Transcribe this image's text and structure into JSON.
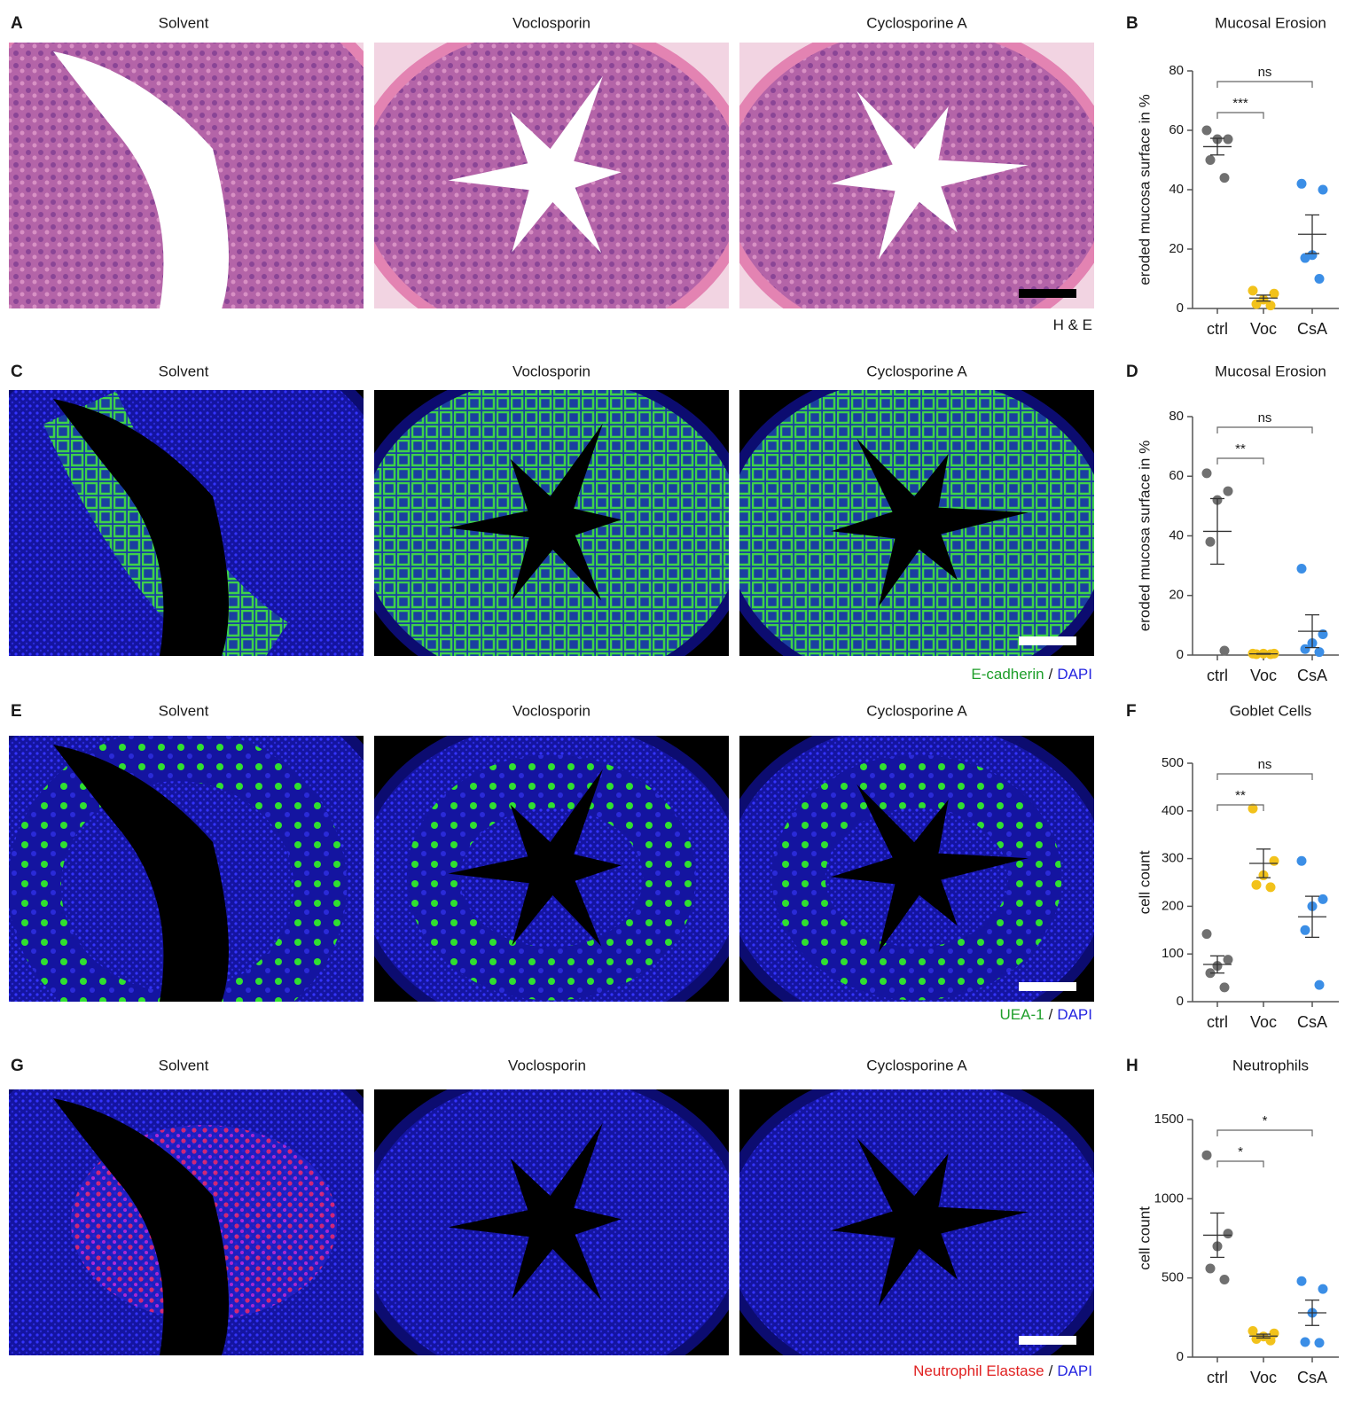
{
  "rows": [
    {
      "letter": "A",
      "titles": [
        "Solvent",
        "Voclosporin",
        "Cyclosporine A"
      ],
      "stain": [
        {
          "text": "H & E",
          "color": "#1a1a1a"
        }
      ]
    },
    {
      "letter": "C",
      "titles": [
        "Solvent",
        "Voclosporin",
        "Cyclosporine A"
      ],
      "stain": [
        {
          "text": "E-cadherin",
          "color": "#1e9e2a"
        },
        {
          "text": "/",
          "color": "#1a1a1a"
        },
        {
          "text": "DAPI",
          "color": "#2424e0"
        }
      ]
    },
    {
      "letter": "E",
      "titles": [
        "Solvent",
        "Voclosporin",
        "Cyclosporine A"
      ],
      "stain": [
        {
          "text": "UEA-1",
          "color": "#1e9e2a"
        },
        {
          "text": "/",
          "color": "#1a1a1a"
        },
        {
          "text": "DAPI",
          "color": "#2424e0"
        }
      ]
    },
    {
      "letter": "G",
      "titles": [
        "Solvent",
        "Voclosporin",
        "Cyclosporine A"
      ],
      "stain": [
        {
          "text": "Neutrophil Elastase",
          "color": "#e02020"
        },
        {
          "text": "/",
          "color": "#1a1a1a"
        },
        {
          "text": "DAPI",
          "color": "#2424e0"
        }
      ]
    }
  ],
  "chart_data": [
    {
      "type": "dot",
      "letter": "B",
      "title": "Mucosal Erosion",
      "ylabel": "eroded mucosa surface in %",
      "categories": [
        "ctrl",
        "Voc",
        "CsA"
      ],
      "colors": [
        "#707070",
        "#f2c21b",
        "#3b8ee6"
      ],
      "points": [
        [
          60,
          57,
          57,
          50,
          44
        ],
        [
          6,
          5,
          3,
          1.5,
          1
        ],
        [
          42,
          40,
          18,
          17,
          10
        ]
      ],
      "means": [
        54.5,
        3.5,
        25
      ],
      "errors": [
        2.8,
        1,
        6.5
      ],
      "ylim": [
        0,
        80
      ],
      "yticks": [
        0,
        20,
        40,
        60,
        80
      ],
      "comparisons": [
        {
          "groups": [
            "ctrl",
            "Voc"
          ],
          "label": "***"
        },
        {
          "groups": [
            "ctrl",
            "CsA"
          ],
          "label": "ns"
        }
      ]
    },
    {
      "type": "dot",
      "letter": "D",
      "title": "Mucosal Erosion",
      "ylabel": "eroded mucosa surface in %",
      "categories": [
        "ctrl",
        "Voc",
        "CsA"
      ],
      "colors": [
        "#707070",
        "#f2c21b",
        "#3b8ee6"
      ],
      "points": [
        [
          61,
          55,
          52,
          38,
          1.5
        ],
        [
          0.5,
          0.5,
          0.5,
          0.3,
          0.3
        ],
        [
          29,
          7,
          4,
          2,
          1
        ]
      ],
      "means": [
        41.5,
        0.4,
        8
      ],
      "errors": [
        11,
        0.1,
        5.5
      ],
      "ylim": [
        0,
        80
      ],
      "yticks": [
        0,
        20,
        40,
        60,
        80
      ],
      "comparisons": [
        {
          "groups": [
            "ctrl",
            "Voc"
          ],
          "label": "**"
        },
        {
          "groups": [
            "ctrl",
            "CsA"
          ],
          "label": "ns"
        }
      ]
    },
    {
      "type": "dot",
      "letter": "F",
      "title": "Goblet Cells",
      "ylabel": "cell count",
      "categories": [
        "ctrl",
        "Voc",
        "CsA"
      ],
      "colors": [
        "#707070",
        "#f2c21b",
        "#3b8ee6"
      ],
      "points": [
        [
          142,
          88,
          75,
          60,
          30
        ],
        [
          405,
          295,
          265,
          245,
          240
        ],
        [
          295,
          215,
          200,
          150,
          35
        ]
      ],
      "means": [
        78,
        290,
        178
      ],
      "errors": [
        18,
        30,
        43
      ],
      "ylim": [
        0,
        500
      ],
      "yticks": [
        0,
        100,
        200,
        300,
        400,
        500
      ],
      "comparisons": [
        {
          "groups": [
            "ctrl",
            "Voc"
          ],
          "label": "**"
        },
        {
          "groups": [
            "ctrl",
            "CsA"
          ],
          "label": "ns"
        }
      ]
    },
    {
      "type": "dot",
      "letter": "H",
      "title": "Neutrophils",
      "ylabel": "cell count",
      "categories": [
        "ctrl",
        "Voc",
        "CsA"
      ],
      "colors": [
        "#707070",
        "#f2c21b",
        "#3b8ee6"
      ],
      "points": [
        [
          1275,
          780,
          700,
          560,
          490
        ],
        [
          165,
          150,
          130,
          115,
          105
        ],
        [
          480,
          430,
          280,
          95,
          90
        ]
      ],
      "means": [
        770,
        133,
        280
      ],
      "errors": [
        140,
        12,
        80
      ],
      "ylim": [
        0,
        1500
      ],
      "yticks": [
        0,
        500,
        1000,
        1500
      ],
      "comparisons": [
        {
          "groups": [
            "ctrl",
            "Voc"
          ],
          "label": "*"
        },
        {
          "groups": [
            "ctrl",
            "CsA"
          ],
          "label": "*"
        }
      ]
    }
  ]
}
